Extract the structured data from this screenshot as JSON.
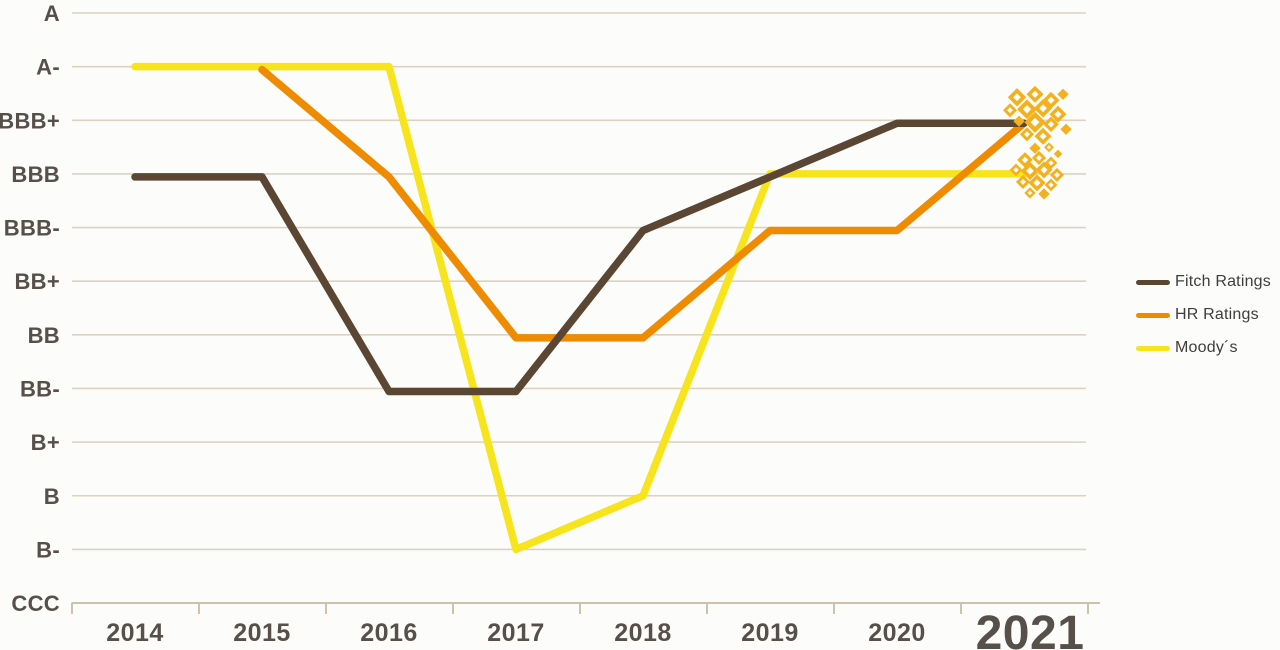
{
  "chart_data": {
    "type": "line",
    "title": "",
    "x": [
      "2014",
      "2015",
      "2016",
      "2017",
      "2018",
      "2019",
      "2020",
      "2021"
    ],
    "y_categories_top_to_bottom": [
      "A",
      "A-",
      "BBB+",
      "BBB",
      "BBB-",
      "BB+",
      "BB",
      "BB-",
      "B+",
      "B",
      "B-",
      "CCC"
    ],
    "grid": "horizontal",
    "legend_position": "right",
    "highlighted_x_label": "2021",
    "series": [
      {
        "name": "Fitch Ratings",
        "color": "#5a4633",
        "values": [
          "BBB",
          "BBB",
          "BB-",
          "BB-",
          "BBB-",
          "BBB",
          "BBB+",
          "BBB+"
        ]
      },
      {
        "name": "HR Ratings",
        "color": "#ef8b00",
        "values": [
          null,
          "A-",
          "BBB",
          "BB",
          "BB",
          "BBB-",
          "BBB-",
          "BBB+"
        ]
      },
      {
        "name": "Moody´s",
        "color": "#f7e41c",
        "values": [
          "A-",
          "A-",
          "A-",
          "B-",
          "B",
          "BBB",
          "BBB",
          "BBB"
        ]
      }
    ]
  },
  "legend": {
    "items": [
      {
        "label": "Fitch Ratings",
        "color": "#5a4633"
      },
      {
        "label": "HR Ratings",
        "color": "#ef8b00"
      },
      {
        "label": "Moody´s",
        "color": "#f7e41c"
      }
    ]
  },
  "end_markers": {
    "icon": "sparkle-diamond-cluster-icon",
    "color": "#f3b21d",
    "hole_color": "#fcfcfa",
    "clusters": [
      {
        "at_year": "2021",
        "rating": "BBB+",
        "diamonds": [
          [
            -19,
            -23,
            13,
            1
          ],
          [
            -1,
            -26,
            12,
            1
          ],
          [
            15,
            -20,
            12,
            1
          ],
          [
            27,
            -26,
            8,
            0
          ],
          [
            -26,
            -10,
            10,
            1
          ],
          [
            -9,
            -11,
            14,
            1
          ],
          [
            7,
            -12,
            13,
            1
          ],
          [
            22,
            -6,
            12,
            1
          ],
          [
            -17,
            1,
            8,
            0
          ],
          [
            -1,
            2,
            15,
            1
          ],
          [
            15,
            4,
            11,
            1
          ],
          [
            30,
            9,
            8,
            0
          ],
          [
            -9,
            14,
            10,
            1
          ],
          [
            7,
            16,
            12,
            1
          ],
          [
            -1,
            28,
            8,
            0
          ],
          [
            13,
            27,
            7,
            1
          ]
        ]
      },
      {
        "at_year": "2021",
        "rating": "BBB",
        "diamonds": [
          [
            -11,
            -14,
            11,
            1
          ],
          [
            3,
            -16,
            10,
            1
          ],
          [
            15,
            -11,
            9,
            1
          ],
          [
            22,
            -20,
            6,
            0
          ],
          [
            -20,
            -4,
            9,
            1
          ],
          [
            -6,
            -3,
            13,
            1
          ],
          [
            8,
            -4,
            12,
            1
          ],
          [
            21,
            1,
            10,
            1
          ],
          [
            -13,
            8,
            10,
            1
          ],
          [
            1,
            9,
            12,
            1
          ],
          [
            15,
            11,
            9,
            1
          ],
          [
            -6,
            19,
            8,
            1
          ],
          [
            8,
            20,
            8,
            0
          ]
        ]
      }
    ]
  },
  "colors": {
    "background": "#fcfcfa",
    "gridline": "#dcd2c0",
    "axis": "#cdc3ac",
    "axis_label": "#57504a",
    "legend_text": "#3e3e3e"
  }
}
